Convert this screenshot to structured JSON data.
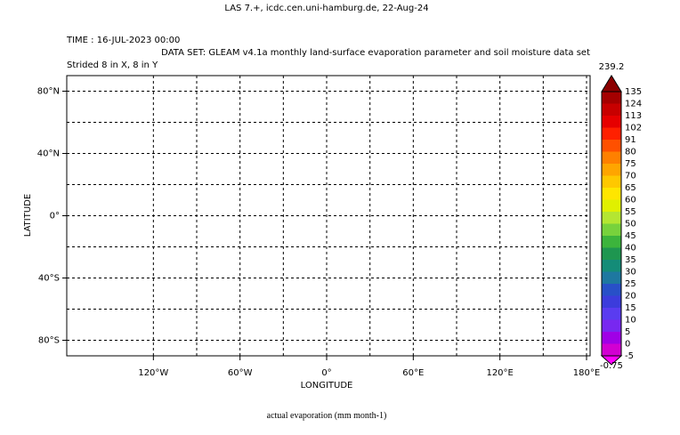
{
  "header": {
    "title": "LAS 7.+, icdc.cen.uni-hamburg.de, 22-Aug-24",
    "time": "TIME : 16-JUL-2023 00:00",
    "dataset": "DATA SET: GLEAM v4.1a monthly land-surface evaporation parameter and soil moisture data set",
    "stride": "Strided 8 in X, 8 in Y"
  },
  "plot": {
    "ylabel": "LATITUDE",
    "xlabel": "LONGITUDE",
    "title": "actual evaporation (mm month-1)",
    "xlim": [
      -180,
      180
    ],
    "ylim": [
      -90,
      90
    ],
    "xticks": [
      {
        "value": -120,
        "label": "120°W"
      },
      {
        "value": -60,
        "label": "60°W"
      },
      {
        "value": 0,
        "label": "0°"
      },
      {
        "value": 60,
        "label": "60°E"
      },
      {
        "value": 120,
        "label": "120°E"
      },
      {
        "value": 180,
        "label": "180°E"
      }
    ],
    "yticks": [
      {
        "value": 80,
        "label": "80°N"
      },
      {
        "value": 40,
        "label": "40°N"
      },
      {
        "value": 0,
        "label": "0°"
      },
      {
        "value": -40,
        "label": "40°S"
      },
      {
        "value": -80,
        "label": "80°S"
      }
    ]
  },
  "colorbar": {
    "max": 239.2,
    "min": -0.75,
    "levels": [
      135,
      124,
      113,
      102,
      91,
      80,
      75,
      70,
      65,
      60,
      55,
      50,
      45,
      40,
      35,
      30,
      25,
      20,
      15,
      10,
      5,
      0,
      -5
    ],
    "colors": [
      "#8b0000",
      "#a50000",
      "#c80000",
      "#e60000",
      "#ff2000",
      "#ff5000",
      "#ff8000",
      "#ffa500",
      "#ffc800",
      "#ffe600",
      "#e0f000",
      "#b4e632",
      "#78d23c",
      "#3cb43c",
      "#1e9650",
      "#148c78",
      "#1e78a0",
      "#2850c8",
      "#3c3cdc",
      "#5a3cf0",
      "#7828f0",
      "#a000e6",
      "#d200d2",
      "#ff00ff"
    ]
  }
}
